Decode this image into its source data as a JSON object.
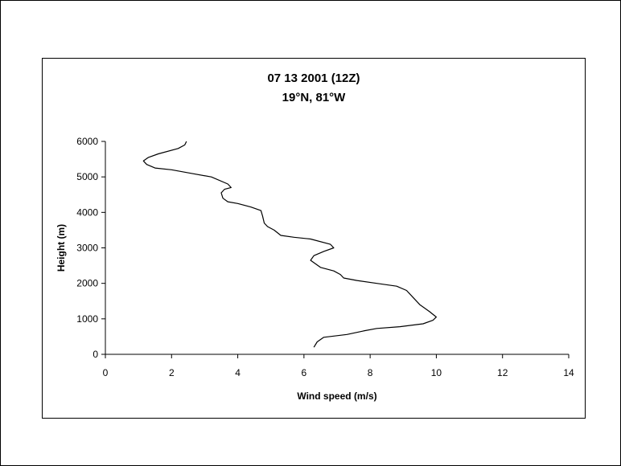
{
  "chart_data": {
    "type": "line",
    "title": "07 13 2001 (12Z)",
    "subtitle": "19°N, 81°W",
    "xlabel": "Wind speed (m/s)",
    "ylabel": "Height (m)",
    "xlim": [
      0,
      14
    ],
    "ylim": [
      0,
      6000
    ],
    "xticks": [
      "0",
      "2",
      "4",
      "6",
      "8",
      "10",
      "12",
      "14"
    ],
    "yticks": [
      "0",
      "1000",
      "2000",
      "3000",
      "4000",
      "5000",
      "6000"
    ],
    "grid": false,
    "legend": "none",
    "line_color": "#000000",
    "series": [
      {
        "x": [
          6.3,
          6.4,
          6.6,
          7.3,
          7.8,
          8.2,
          8.9,
          9.6,
          9.9,
          10.0,
          9.8,
          9.5,
          9.3,
          9.1,
          8.8,
          8.2,
          7.6,
          7.2,
          7.1,
          6.9,
          6.5,
          6.2,
          6.3,
          6.6,
          6.9,
          6.8,
          6.2,
          5.7,
          5.3,
          5.1,
          4.9,
          4.8,
          4.75,
          4.7,
          4.4,
          4.0,
          3.7,
          3.55,
          3.5,
          3.6,
          3.8,
          3.7,
          3.2,
          2.6,
          2.0,
          1.5,
          1.25,
          1.15,
          1.3,
          1.6,
          2.2,
          2.4,
          2.45
        ],
        "y": [
          200,
          350,
          480,
          560,
          660,
          730,
          780,
          860,
          960,
          1050,
          1200,
          1400,
          1600,
          1800,
          1920,
          2000,
          2080,
          2150,
          2250,
          2350,
          2450,
          2650,
          2780,
          2900,
          3000,
          3100,
          3250,
          3300,
          3350,
          3500,
          3600,
          3700,
          3900,
          4050,
          4150,
          4250,
          4300,
          4400,
          4550,
          4650,
          4700,
          4800,
          5000,
          5100,
          5200,
          5250,
          5350,
          5450,
          5550,
          5650,
          5800,
          5900,
          6000
        ]
      }
    ]
  }
}
